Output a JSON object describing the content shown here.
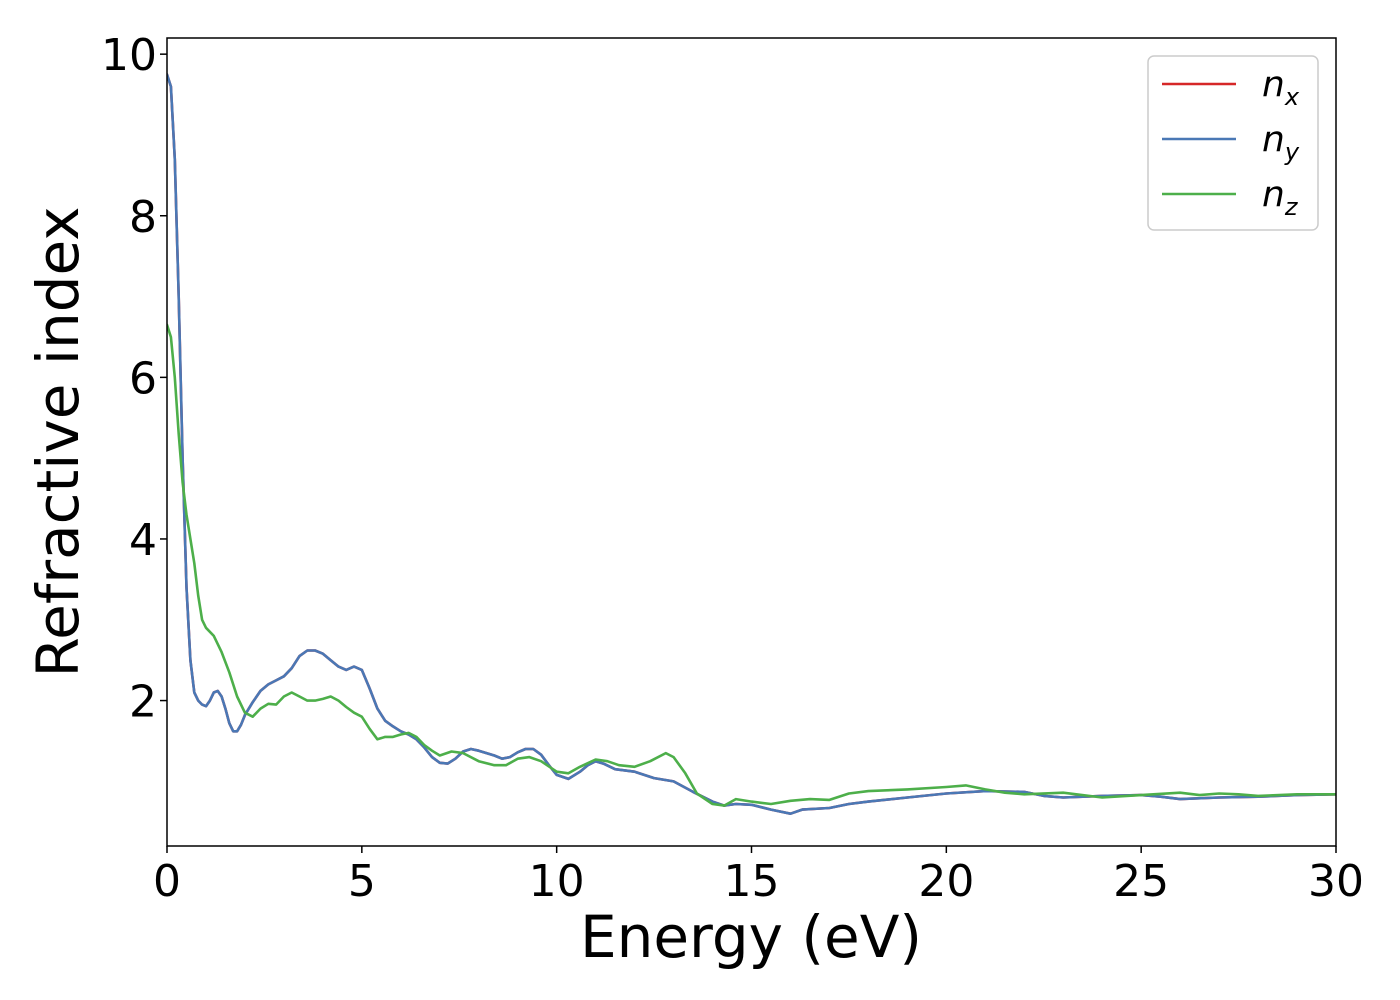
{
  "chart_data": {
    "type": "line",
    "title": "",
    "xlabel": "Energy (eV)",
    "ylabel": "Refractive index",
    "xlim": [
      0,
      30
    ],
    "ylim": [
      0.2,
      10.2
    ],
    "xticks": [
      "0",
      "5",
      "10",
      "15",
      "20",
      "25",
      "30"
    ],
    "yticks": [
      "2",
      "4",
      "6",
      "8",
      "10"
    ],
    "grid": false,
    "legend_position": "top-right",
    "series": [
      {
        "name": "n_x",
        "label_main": "n",
        "label_sub": "x",
        "color": "#d62728",
        "points": [
          [
            0,
            9.75
          ],
          [
            0.1,
            9.6
          ],
          [
            0.2,
            8.7
          ],
          [
            0.3,
            7.0
          ],
          [
            0.4,
            5.0
          ],
          [
            0.5,
            3.4
          ],
          [
            0.6,
            2.5
          ],
          [
            0.7,
            2.1
          ],
          [
            0.8,
            2.0
          ],
          [
            0.9,
            1.95
          ],
          [
            1.0,
            1.93
          ],
          [
            1.1,
            2.0
          ],
          [
            1.2,
            2.1
          ],
          [
            1.3,
            2.12
          ],
          [
            1.4,
            2.05
          ],
          [
            1.5,
            1.9
          ],
          [
            1.6,
            1.72
          ],
          [
            1.7,
            1.62
          ],
          [
            1.8,
            1.62
          ],
          [
            1.9,
            1.7
          ],
          [
            2.0,
            1.82
          ],
          [
            2.2,
            1.98
          ],
          [
            2.4,
            2.12
          ],
          [
            2.6,
            2.2
          ],
          [
            2.8,
            2.25
          ],
          [
            3.0,
            2.3
          ],
          [
            3.2,
            2.4
          ],
          [
            3.4,
            2.55
          ],
          [
            3.6,
            2.62
          ],
          [
            3.8,
            2.62
          ],
          [
            4.0,
            2.58
          ],
          [
            4.2,
            2.5
          ],
          [
            4.4,
            2.42
          ],
          [
            4.6,
            2.38
          ],
          [
            4.8,
            2.42
          ],
          [
            5.0,
            2.38
          ],
          [
            5.2,
            2.15
          ],
          [
            5.4,
            1.9
          ],
          [
            5.6,
            1.75
          ],
          [
            5.8,
            1.68
          ],
          [
            6.0,
            1.62
          ],
          [
            6.2,
            1.58
          ],
          [
            6.4,
            1.52
          ],
          [
            6.6,
            1.42
          ],
          [
            6.8,
            1.3
          ],
          [
            7.0,
            1.23
          ],
          [
            7.2,
            1.22
          ],
          [
            7.4,
            1.28
          ],
          [
            7.6,
            1.37
          ],
          [
            7.8,
            1.4
          ],
          [
            8.0,
            1.38
          ],
          [
            8.2,
            1.35
          ],
          [
            8.4,
            1.32
          ],
          [
            8.6,
            1.28
          ],
          [
            8.8,
            1.3
          ],
          [
            9.0,
            1.36
          ],
          [
            9.2,
            1.4
          ],
          [
            9.4,
            1.4
          ],
          [
            9.6,
            1.33
          ],
          [
            9.8,
            1.2
          ],
          [
            10.0,
            1.08
          ],
          [
            10.3,
            1.03
          ],
          [
            10.6,
            1.12
          ],
          [
            10.8,
            1.2
          ],
          [
            11.0,
            1.25
          ],
          [
            11.2,
            1.22
          ],
          [
            11.5,
            1.15
          ],
          [
            12.0,
            1.12
          ],
          [
            12.5,
            1.04
          ],
          [
            13.0,
            1.0
          ],
          [
            13.5,
            0.87
          ],
          [
            14.0,
            0.75
          ],
          [
            14.3,
            0.7
          ],
          [
            14.6,
            0.72
          ],
          [
            15.0,
            0.71
          ],
          [
            15.5,
            0.65
          ],
          [
            16.0,
            0.6
          ],
          [
            16.3,
            0.65
          ],
          [
            17.0,
            0.67
          ],
          [
            17.5,
            0.72
          ],
          [
            18.0,
            0.75
          ],
          [
            19.0,
            0.8
          ],
          [
            20.0,
            0.85
          ],
          [
            21.0,
            0.88
          ],
          [
            22.0,
            0.87
          ],
          [
            22.5,
            0.82
          ],
          [
            23.0,
            0.8
          ],
          [
            24.0,
            0.82
          ],
          [
            25.0,
            0.83
          ],
          [
            25.5,
            0.81
          ],
          [
            26.0,
            0.78
          ],
          [
            27.0,
            0.8
          ],
          [
            28.0,
            0.81
          ],
          [
            29.0,
            0.83
          ],
          [
            30.0,
            0.84
          ]
        ]
      },
      {
        "name": "n_y",
        "label_main": "n",
        "label_sub": "y",
        "color": "#4a78b5",
        "points": [
          [
            0,
            9.75
          ],
          [
            0.1,
            9.6
          ],
          [
            0.2,
            8.7
          ],
          [
            0.3,
            7.0
          ],
          [
            0.4,
            5.0
          ],
          [
            0.5,
            3.4
          ],
          [
            0.6,
            2.5
          ],
          [
            0.7,
            2.1
          ],
          [
            0.8,
            2.0
          ],
          [
            0.9,
            1.95
          ],
          [
            1.0,
            1.93
          ],
          [
            1.1,
            2.0
          ],
          [
            1.2,
            2.1
          ],
          [
            1.3,
            2.12
          ],
          [
            1.4,
            2.05
          ],
          [
            1.5,
            1.9
          ],
          [
            1.6,
            1.72
          ],
          [
            1.7,
            1.62
          ],
          [
            1.8,
            1.62
          ],
          [
            1.9,
            1.7
          ],
          [
            2.0,
            1.82
          ],
          [
            2.2,
            1.98
          ],
          [
            2.4,
            2.12
          ],
          [
            2.6,
            2.2
          ],
          [
            2.8,
            2.25
          ],
          [
            3.0,
            2.3
          ],
          [
            3.2,
            2.4
          ],
          [
            3.4,
            2.55
          ],
          [
            3.6,
            2.62
          ],
          [
            3.8,
            2.62
          ],
          [
            4.0,
            2.58
          ],
          [
            4.2,
            2.5
          ],
          [
            4.4,
            2.42
          ],
          [
            4.6,
            2.38
          ],
          [
            4.8,
            2.42
          ],
          [
            5.0,
            2.38
          ],
          [
            5.2,
            2.15
          ],
          [
            5.4,
            1.9
          ],
          [
            5.6,
            1.75
          ],
          [
            5.8,
            1.68
          ],
          [
            6.0,
            1.62
          ],
          [
            6.2,
            1.58
          ],
          [
            6.4,
            1.52
          ],
          [
            6.6,
            1.42
          ],
          [
            6.8,
            1.3
          ],
          [
            7.0,
            1.23
          ],
          [
            7.2,
            1.22
          ],
          [
            7.4,
            1.28
          ],
          [
            7.6,
            1.37
          ],
          [
            7.8,
            1.4
          ],
          [
            8.0,
            1.38
          ],
          [
            8.2,
            1.35
          ],
          [
            8.4,
            1.32
          ],
          [
            8.6,
            1.28
          ],
          [
            8.8,
            1.3
          ],
          [
            9.0,
            1.36
          ],
          [
            9.2,
            1.4
          ],
          [
            9.4,
            1.4
          ],
          [
            9.6,
            1.33
          ],
          [
            9.8,
            1.2
          ],
          [
            10.0,
            1.08
          ],
          [
            10.3,
            1.03
          ],
          [
            10.6,
            1.12
          ],
          [
            10.8,
            1.2
          ],
          [
            11.0,
            1.25
          ],
          [
            11.2,
            1.22
          ],
          [
            11.5,
            1.15
          ],
          [
            12.0,
            1.12
          ],
          [
            12.5,
            1.04
          ],
          [
            13.0,
            1.0
          ],
          [
            13.5,
            0.87
          ],
          [
            14.0,
            0.75
          ],
          [
            14.3,
            0.7
          ],
          [
            14.6,
            0.72
          ],
          [
            15.0,
            0.71
          ],
          [
            15.5,
            0.65
          ],
          [
            16.0,
            0.6
          ],
          [
            16.3,
            0.65
          ],
          [
            17.0,
            0.67
          ],
          [
            17.5,
            0.72
          ],
          [
            18.0,
            0.75
          ],
          [
            19.0,
            0.8
          ],
          [
            20.0,
            0.85
          ],
          [
            21.0,
            0.88
          ],
          [
            22.0,
            0.87
          ],
          [
            22.5,
            0.82
          ],
          [
            23.0,
            0.8
          ],
          [
            24.0,
            0.82
          ],
          [
            25.0,
            0.83
          ],
          [
            25.5,
            0.81
          ],
          [
            26.0,
            0.78
          ],
          [
            27.0,
            0.8
          ],
          [
            28.0,
            0.81
          ],
          [
            29.0,
            0.83
          ],
          [
            30.0,
            0.84
          ]
        ]
      },
      {
        "name": "n_z",
        "label_main": "n",
        "label_sub": "z",
        "color": "#4daf4a",
        "points": [
          [
            0,
            6.65
          ],
          [
            0.1,
            6.5
          ],
          [
            0.2,
            6.0
          ],
          [
            0.3,
            5.3
          ],
          [
            0.4,
            4.7
          ],
          [
            0.5,
            4.3
          ],
          [
            0.6,
            4.0
          ],
          [
            0.7,
            3.7
          ],
          [
            0.8,
            3.3
          ],
          [
            0.9,
            3.0
          ],
          [
            1.0,
            2.9
          ],
          [
            1.2,
            2.8
          ],
          [
            1.4,
            2.6
          ],
          [
            1.6,
            2.35
          ],
          [
            1.8,
            2.05
          ],
          [
            2.0,
            1.85
          ],
          [
            2.2,
            1.8
          ],
          [
            2.4,
            1.9
          ],
          [
            2.6,
            1.96
          ],
          [
            2.8,
            1.95
          ],
          [
            3.0,
            2.05
          ],
          [
            3.2,
            2.1
          ],
          [
            3.4,
            2.05
          ],
          [
            3.6,
            2.0
          ],
          [
            3.8,
            2.0
          ],
          [
            4.0,
            2.02
          ],
          [
            4.2,
            2.05
          ],
          [
            4.4,
            2.0
          ],
          [
            4.6,
            1.92
          ],
          [
            4.8,
            1.85
          ],
          [
            5.0,
            1.8
          ],
          [
            5.2,
            1.65
          ],
          [
            5.4,
            1.52
          ],
          [
            5.6,
            1.55
          ],
          [
            5.8,
            1.55
          ],
          [
            6.0,
            1.58
          ],
          [
            6.2,
            1.6
          ],
          [
            6.4,
            1.55
          ],
          [
            6.6,
            1.45
          ],
          [
            6.8,
            1.38
          ],
          [
            7.0,
            1.32
          ],
          [
            7.3,
            1.37
          ],
          [
            7.6,
            1.35
          ],
          [
            8.0,
            1.25
          ],
          [
            8.4,
            1.2
          ],
          [
            8.7,
            1.2
          ],
          [
            9.0,
            1.28
          ],
          [
            9.3,
            1.3
          ],
          [
            9.6,
            1.25
          ],
          [
            10.0,
            1.12
          ],
          [
            10.3,
            1.1
          ],
          [
            10.6,
            1.18
          ],
          [
            11.0,
            1.27
          ],
          [
            11.3,
            1.25
          ],
          [
            11.6,
            1.2
          ],
          [
            12.0,
            1.18
          ],
          [
            12.4,
            1.25
          ],
          [
            12.8,
            1.35
          ],
          [
            13.0,
            1.3
          ],
          [
            13.3,
            1.1
          ],
          [
            13.6,
            0.85
          ],
          [
            14.0,
            0.72
          ],
          [
            14.3,
            0.7
          ],
          [
            14.6,
            0.78
          ],
          [
            15.0,
            0.75
          ],
          [
            15.5,
            0.72
          ],
          [
            16.0,
            0.76
          ],
          [
            16.5,
            0.78
          ],
          [
            17.0,
            0.77
          ],
          [
            17.5,
            0.85
          ],
          [
            18.0,
            0.88
          ],
          [
            19.0,
            0.9
          ],
          [
            20.0,
            0.93
          ],
          [
            20.5,
            0.95
          ],
          [
            21.0,
            0.9
          ],
          [
            21.5,
            0.86
          ],
          [
            22.0,
            0.84
          ],
          [
            23.0,
            0.86
          ],
          [
            24.0,
            0.8
          ],
          [
            25.0,
            0.83
          ],
          [
            26.0,
            0.86
          ],
          [
            26.5,
            0.83
          ],
          [
            27.0,
            0.85
          ],
          [
            27.5,
            0.84
          ],
          [
            28.0,
            0.82
          ],
          [
            29.0,
            0.84
          ],
          [
            30.0,
            0.84
          ]
        ]
      }
    ]
  }
}
